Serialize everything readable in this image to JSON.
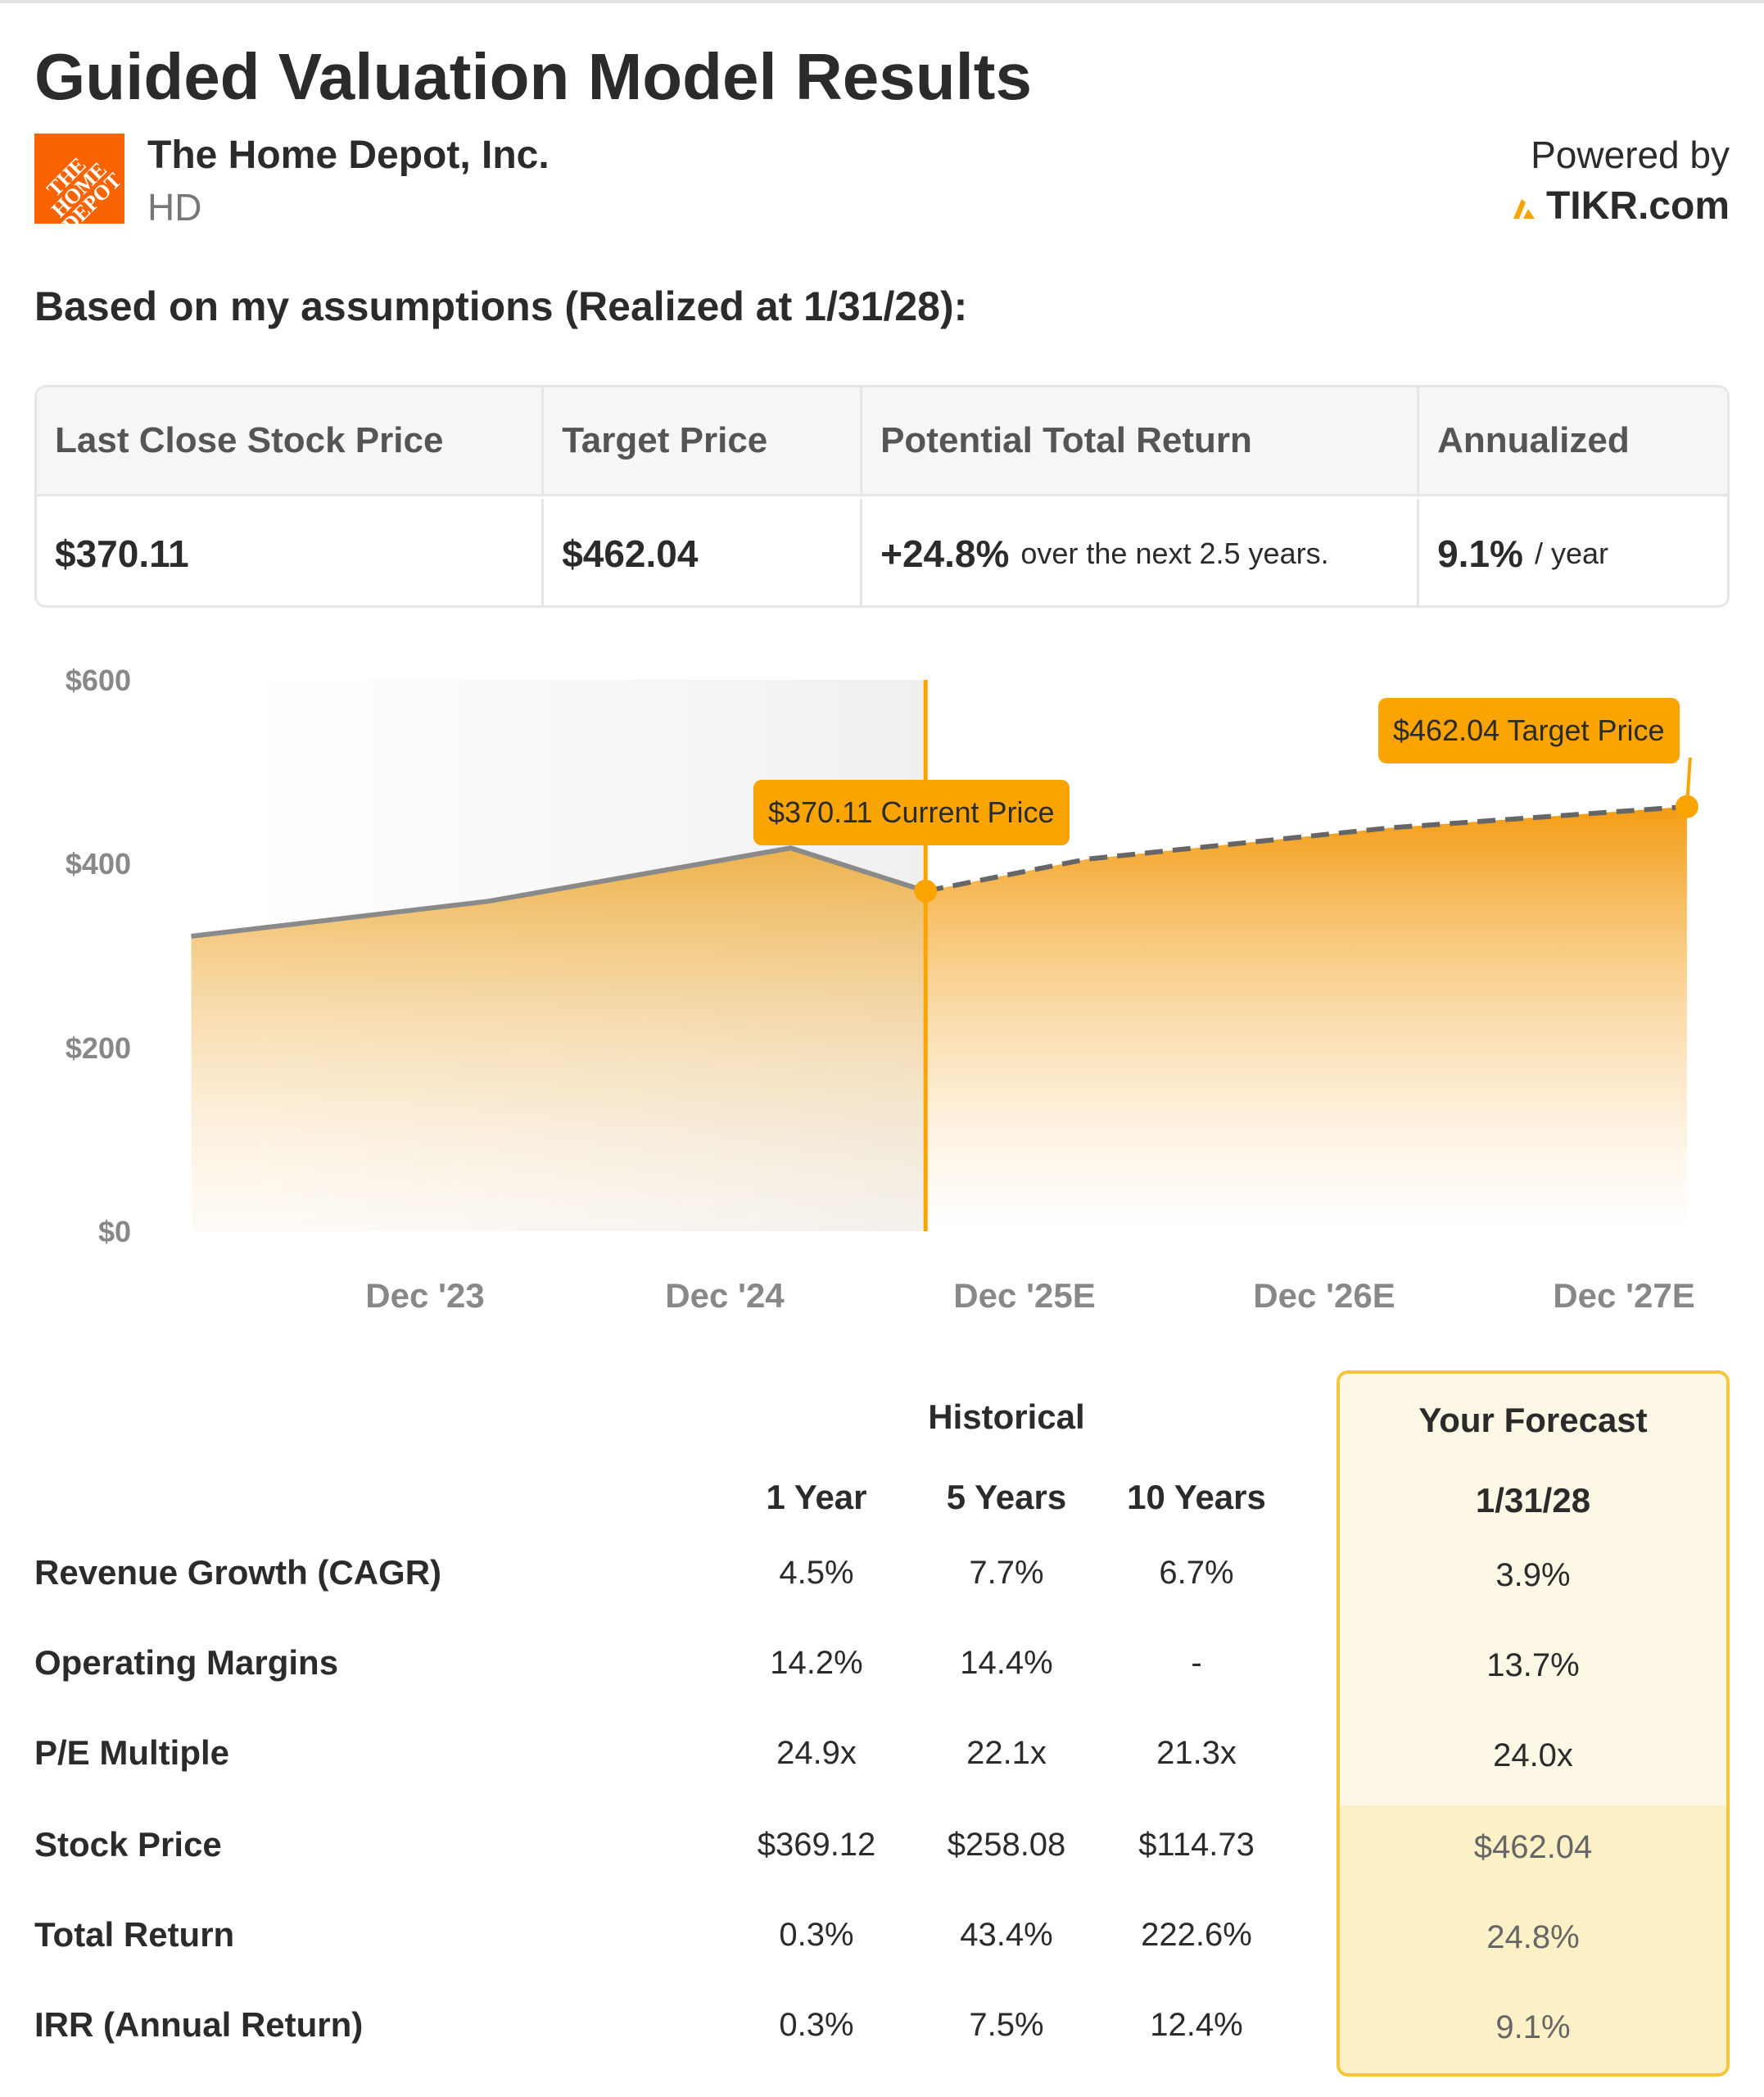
{
  "title": "Guided Valuation Model Results",
  "company": {
    "name": "The Home Depot, Inc.",
    "ticker": "HD",
    "logo_text": "THE HOME DEPOT",
    "logo_color": "#f96302"
  },
  "powered": {
    "label": "Powered by",
    "brand": "TIKR.com"
  },
  "subtitle": "Based on my assumptions (Realized at 1/31/28):",
  "summary": {
    "headers": [
      "Last Close Stock Price",
      "Target Price",
      "Potential Total Return",
      "Annualized"
    ],
    "last_close": "$370.11",
    "target": "$462.04",
    "total_return": "+24.8%",
    "total_return_note": "over the next 2.5 years.",
    "annualized": "9.1%",
    "annualized_note": "/ year"
  },
  "chart_data": {
    "type": "area",
    "ylim": [
      0,
      600
    ],
    "yticks": [
      "$600",
      "$400",
      "$200",
      "$0"
    ],
    "ytick_values": [
      600,
      400,
      200,
      0
    ],
    "xticks": [
      "Dec '23",
      "Dec '24",
      "Dec '25E",
      "Dec '26E",
      "Dec '27E"
    ],
    "xtick_years": [
      2023.92,
      2024.92,
      2025.92,
      2026.92,
      2027.92
    ],
    "historical": [
      {
        "x": 2023.14,
        "y": 321
      },
      {
        "x": 2024.13,
        "y": 359
      },
      {
        "x": 2025.14,
        "y": 417
      },
      {
        "x": 2025.59,
        "y": 370.11
      }
    ],
    "forecast": [
      {
        "x": 2025.59,
        "y": 370.11
      },
      {
        "x": 2026.13,
        "y": 405
      },
      {
        "x": 2027.14,
        "y": 439
      },
      {
        "x": 2028.13,
        "y": 462.04
      }
    ],
    "current_label": "$370.11 Current Price",
    "target_label": "$462.04 Target Price",
    "accent": "#f9a400"
  },
  "metrics": {
    "historical_label": "Historical",
    "forecast_label": "Your Forecast",
    "columns": [
      "1 Year",
      "5 Years",
      "10 Years",
      "1/31/28"
    ],
    "rows": [
      {
        "label": "Revenue Growth (CAGR)",
        "values": [
          "4.5%",
          "7.7%",
          "6.7%",
          "3.9%"
        ]
      },
      {
        "label": "Operating Margins",
        "values": [
          "14.2%",
          "14.4%",
          "-",
          "13.7%"
        ]
      },
      {
        "label": "P/E Multiple",
        "values": [
          "24.9x",
          "22.1x",
          "21.3x",
          "24.0x"
        ]
      },
      {
        "label": "Stock Price",
        "values": [
          "$369.12",
          "$258.08",
          "$114.73",
          "$462.04"
        ]
      },
      {
        "label": "Total Return",
        "values": [
          "0.3%",
          "43.4%",
          "222.6%",
          "24.8%"
        ]
      },
      {
        "label": "IRR (Annual Return)",
        "values": [
          "0.3%",
          "7.5%",
          "12.4%",
          "9.1%"
        ]
      }
    ]
  }
}
